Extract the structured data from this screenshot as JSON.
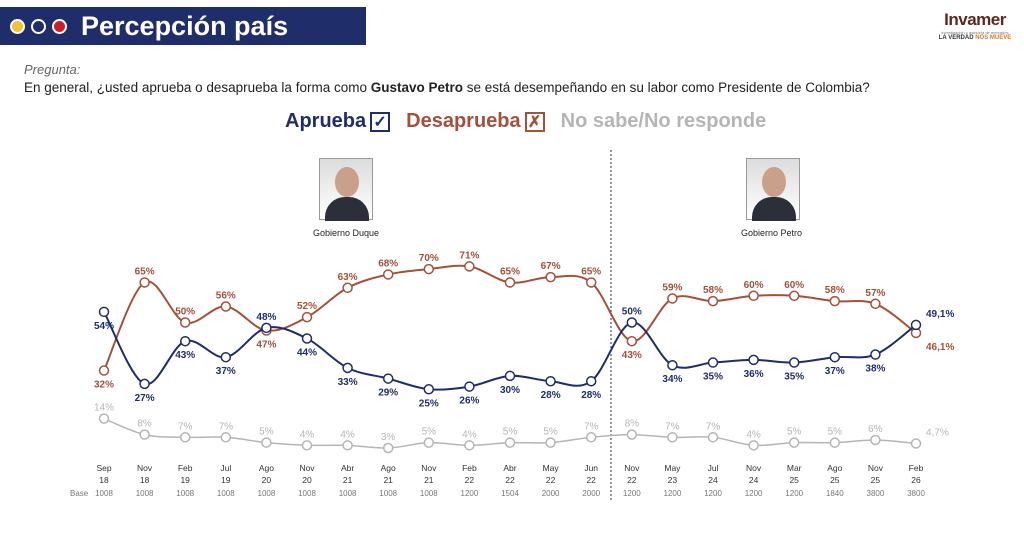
{
  "header": {
    "title": "Percepción país",
    "dot_colors": [
      "#f2c230",
      "#ffffff",
      "#c8202a"
    ],
    "bg_color": "#1f2d6b"
  },
  "logo": {
    "brand": "Invamer",
    "subtitle": "investigación y asesoría de mercados",
    "tagline_a": "LA VERDAD ",
    "tagline_b": "NOS MUEVE"
  },
  "question": {
    "label": "Pregunta:",
    "pre": "En general, ¿usted aprueba o desaprueba la forma como ",
    "bold": "Gustavo Petro",
    "post": " se está desempeñando en su labor como Presidente de Colombia?"
  },
  "legend": {
    "aprueba": "Aprueba",
    "desaprueba": "Desaprueba",
    "nsnr": "No sabe/No responde"
  },
  "periods": {
    "duque": "Gobierno Duque",
    "petro": "Gobierno Petro"
  },
  "chart_data": {
    "type": "line",
    "categories": [
      [
        "Sep",
        "18"
      ],
      [
        "Nov",
        "18"
      ],
      [
        "Feb",
        "19"
      ],
      [
        "Jul",
        "19"
      ],
      [
        "Ago",
        "20"
      ],
      [
        "Nov",
        "20"
      ],
      [
        "Abr",
        "21"
      ],
      [
        "Ago",
        "21"
      ],
      [
        "Nov",
        "21"
      ],
      [
        "Feb",
        "22"
      ],
      [
        "Abr",
        "22"
      ],
      [
        "May",
        "22"
      ],
      [
        "Jun",
        "22"
      ],
      [
        "Nov",
        "22"
      ],
      [
        "May",
        "23"
      ],
      [
        "Jul",
        "24"
      ],
      [
        "Nov",
        "24"
      ],
      [
        "Mar",
        "25"
      ],
      [
        "Ago",
        "25"
      ],
      [
        "Nov",
        "25"
      ],
      [
        "Feb",
        "26"
      ]
    ],
    "base_label": "Base",
    "base": [
      "1008",
      "1008",
      "1008",
      "1008",
      "1008",
      "1008",
      "1008",
      "1008",
      "1008",
      "1200",
      "1504",
      "2000",
      "2000",
      "1200",
      "1200",
      "1200",
      "1200",
      "1200",
      "1840",
      "3800",
      "3800"
    ],
    "series": [
      {
        "name": "Aprueba",
        "color": "#1f2d6b",
        "values": [
          54,
          27,
          43,
          37,
          48,
          44,
          33,
          29,
          25,
          26,
          30,
          28,
          28,
          50,
          34,
          35,
          36,
          35,
          37,
          38,
          49.1
        ],
        "labels": [
          "54%",
          "27%",
          "43%",
          "37%",
          "48%",
          "44%",
          "33%",
          "29%",
          "25%",
          "26%",
          "30%",
          "28%",
          "28%",
          "50%",
          "34%",
          "35%",
          "36%",
          "35%",
          "37%",
          "38%",
          "49,1%"
        ]
      },
      {
        "name": "Desaprueba",
        "color": "#a5503a",
        "values": [
          32,
          65,
          50,
          56,
          47,
          52,
          63,
          68,
          70,
          71,
          65,
          67,
          65,
          43,
          59,
          58,
          60,
          60,
          58,
          57,
          46.1
        ],
        "labels": [
          "32%",
          "65%",
          "50%",
          "56%",
          "47%",
          "52%",
          "63%",
          "68%",
          "70%",
          "71%",
          "65%",
          "67%",
          "65%",
          "43%",
          "59%",
          "58%",
          "60%",
          "60%",
          "58%",
          "57%",
          "46,1%"
        ]
      },
      {
        "name": "No sabe/No responde",
        "color": "#b5b5b5",
        "values": [
          14,
          8,
          7,
          7,
          5,
          4,
          4,
          3,
          5,
          4,
          5,
          5,
          7,
          8,
          7,
          7,
          4,
          5,
          5,
          6,
          4.7
        ],
        "labels": [
          "14%",
          "8%",
          "7%",
          "7%",
          "5%",
          "4%",
          "4%",
          "3%",
          "5%",
          "4%",
          "5%",
          "5%",
          "7%",
          "8%",
          "7%",
          "7%",
          "4%",
          "5%",
          "5%",
          "6%",
          "4,7%"
        ]
      }
    ],
    "divider_after": "Jun 22"
  }
}
